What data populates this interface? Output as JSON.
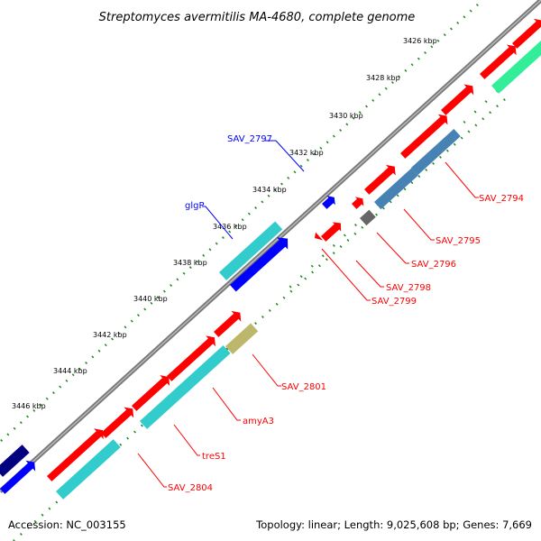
{
  "title": "Streptomyces avermitilis MA-4680, complete genome",
  "footer": {
    "accession": "Accession: NC_003155",
    "summary": "Topology: linear; Length: 9,025,608 bp; Genes: 7,669"
  },
  "ticks": [
    "3426 kbp",
    "3428 kbp",
    "3430 kbp",
    "3432 kbp",
    "3434 kbp",
    "3436 kbp",
    "3438 kbp",
    "3440 kbp",
    "3442 kbp",
    "3444 kbp",
    "3446 kbp"
  ],
  "genes": [
    {
      "label": "SAV_2797",
      "color": "#0000ff"
    },
    {
      "label": "glgP",
      "color": "#0000ff"
    },
    {
      "label": "SAV_2794",
      "color": "#ff0000"
    },
    {
      "label": "SAV_2795",
      "color": "#ff0000"
    },
    {
      "label": "SAV_2796",
      "color": "#ff0000"
    },
    {
      "label": "SAV_2798",
      "color": "#ff0000"
    },
    {
      "label": "SAV_2799",
      "color": "#ff0000"
    },
    {
      "label": "SAV_2801",
      "color": "#ff0000"
    },
    {
      "label": "amyA3",
      "color": "#ff0000"
    },
    {
      "label": "treS1",
      "color": "#ff0000"
    },
    {
      "label": "SAV_2804",
      "color": "#ff0000"
    }
  ],
  "colors": {
    "backbone": "#909090",
    "forward_cds": "#ff0000",
    "reverse_cds": "#0000ff",
    "cyan_feature": "#33cccc",
    "green_feature": "#33ee99",
    "steel_feature": "#4682b4",
    "olive_feature": "#bdb76b",
    "gray_feature": "#666666",
    "navy_feature": "#000080",
    "tick_dots_outer": "#228b22",
    "tick_dots_inner": "#228b22"
  }
}
